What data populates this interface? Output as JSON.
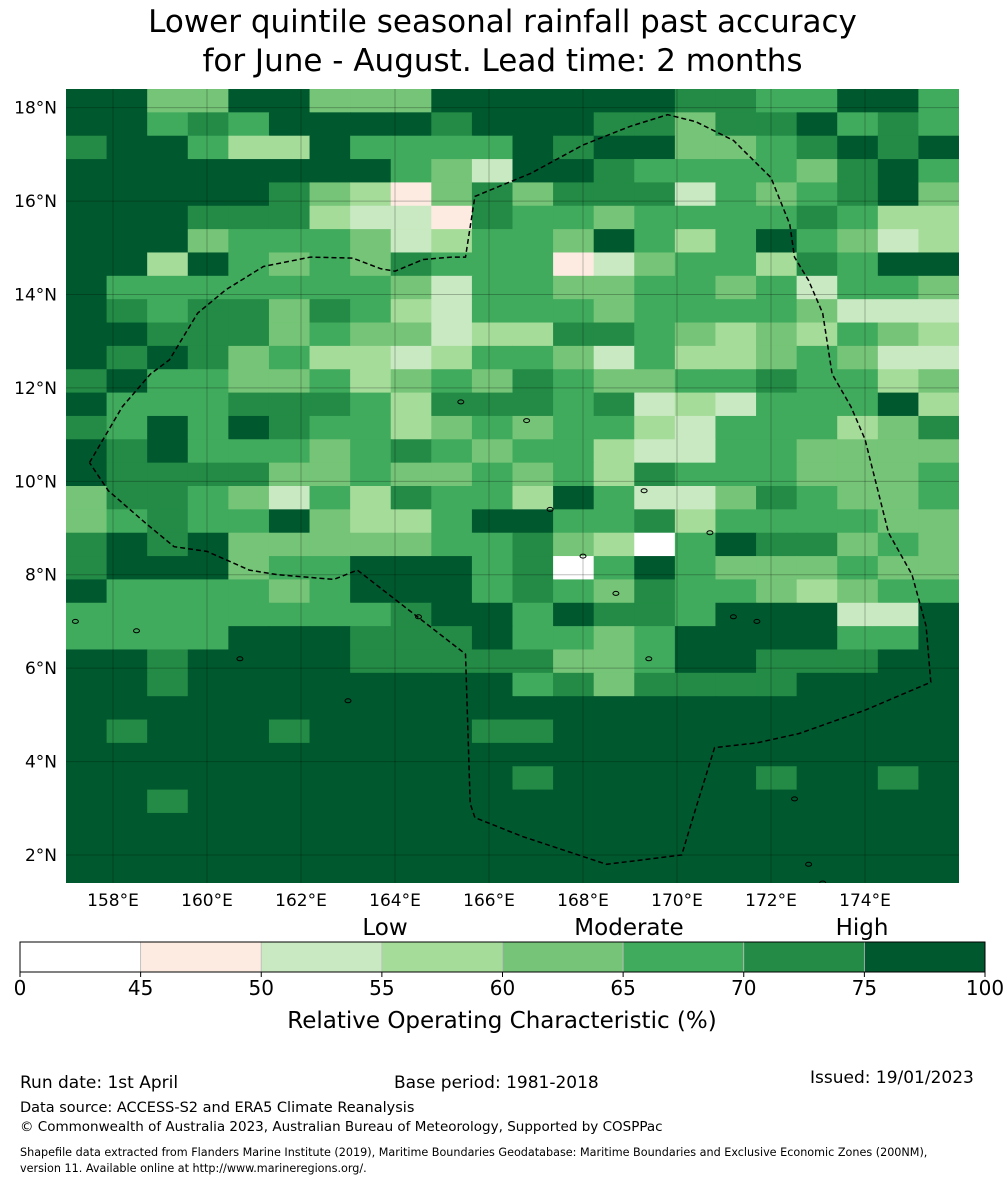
{
  "title": {
    "line1": "Lower quintile seasonal rainfall past accuracy",
    "line2": "for June - August. Lead time: 2 months"
  },
  "map": {
    "lat_ticks": [
      "18°N",
      "16°N",
      "14°N",
      "12°N",
      "10°N",
      "8°N",
      "6°N",
      "4°N",
      "2°N"
    ],
    "lon_ticks": [
      "158°E",
      "160°E",
      "162°E",
      "164°E",
      "166°E",
      "168°E",
      "170°E",
      "172°E",
      "174°E"
    ],
    "lon_range": [
      157,
      176
    ],
    "lat_range": [
      1.4,
      18.4
    ],
    "grid": true,
    "cell_size_deg": 0.833,
    "grid_rows_north_to_south": [
      "7744774447777776655775",
      "7756577776777664667565",
      "6775337555576774456767",
      "7777777754277655554675",
      "7777764314646662545674",
      "7776663221655455556533",
      "7774555423554753575423",
      "7737545465551245536577",
      "7555555542554455452554",
      "7656646532555455554222",
      "7766645442336654343543",
      "7676453323554253345422",
      "6755445345465445565534",
      "7555666536665623255573",
      "6575765534545532555346",
      "7675554565455322554444",
      "7666644544545365554445",
      "4665425365537522465445",
      "4565574335775563555544",
      "6767444445564305766454",
      "6777455777560575444544",
      "7555545777565465543455",
      "5555555567757665777227",
      "5555777666755457777557",
      "7767777666664457766677",
      "7767777777756466667777",
      "7777777777777777777777",
      "7677767777667777777777",
      "7777777777777777777777",
      "7777777777767777767767",
      "7767777777777777777777",
      "7777777777777777777777",
      "7777777777777777777777",
      "7777777777777777777777"
    ],
    "zone_outline": [
      [
        157.5,
        10.4
      ],
      [
        158.2,
        11.6
      ],
      [
        158.8,
        12.3
      ],
      [
        159.2,
        12.6
      ],
      [
        159.8,
        13.6
      ],
      [
        160.4,
        14.1
      ],
      [
        161.2,
        14.6
      ],
      [
        162.2,
        14.8
      ],
      [
        163.1,
        14.78
      ],
      [
        163.7,
        14.55
      ],
      [
        164.0,
        14.5
      ],
      [
        164.6,
        14.75
      ],
      [
        165.2,
        14.8
      ],
      [
        165.5,
        14.8
      ],
      [
        165.7,
        16.1
      ],
      [
        166.9,
        16.6
      ],
      [
        168.0,
        17.2
      ],
      [
        169.0,
        17.6
      ],
      [
        169.8,
        17.85
      ],
      [
        170.4,
        17.7
      ],
      [
        171.2,
        17.3
      ],
      [
        172.0,
        16.5
      ],
      [
        172.4,
        15.5
      ],
      [
        172.5,
        14.8
      ],
      [
        172.8,
        14.3
      ],
      [
        173.1,
        13.6
      ],
      [
        173.3,
        12.3
      ],
      [
        173.7,
        11.6
      ],
      [
        174.0,
        10.9
      ],
      [
        174.2,
        10.1
      ],
      [
        174.5,
        8.9
      ],
      [
        175.0,
        8.0
      ],
      [
        175.3,
        6.9
      ],
      [
        175.4,
        5.7
      ],
      [
        174.0,
        5.1
      ],
      [
        172.6,
        4.6
      ],
      [
        171.7,
        4.4
      ],
      [
        170.8,
        4.3
      ],
      [
        170.4,
        3.0
      ],
      [
        170.1,
        2.0
      ],
      [
        168.5,
        1.8
      ],
      [
        167.6,
        2.1
      ],
      [
        166.7,
        2.4
      ],
      [
        165.7,
        2.8
      ],
      [
        165.6,
        3.1
      ],
      [
        165.5,
        6.3
      ],
      [
        163.2,
        8.1
      ],
      [
        162.7,
        7.9
      ],
      [
        161.5,
        8.0
      ],
      [
        160.9,
        8.1
      ],
      [
        160.0,
        8.5
      ],
      [
        159.3,
        8.6
      ],
      [
        158.7,
        9.1
      ],
      [
        157.9,
        9.8
      ],
      [
        157.5,
        10.4
      ]
    ],
    "islands": [
      [
        157.2,
        7.0
      ],
      [
        158.5,
        6.8
      ],
      [
        160.7,
        6.2
      ],
      [
        163.0,
        5.3
      ],
      [
        164.5,
        7.1
      ],
      [
        165.4,
        11.7
      ],
      [
        166.8,
        11.3
      ],
      [
        167.3,
        9.4
      ],
      [
        168.0,
        8.4
      ],
      [
        168.7,
        7.6
      ],
      [
        169.3,
        9.8
      ],
      [
        169.4,
        6.2
      ],
      [
        170.7,
        8.9
      ],
      [
        171.2,
        7.1
      ],
      [
        171.7,
        7.0
      ],
      [
        172.5,
        3.2
      ],
      [
        172.8,
        1.8
      ],
      [
        173.1,
        1.4
      ]
    ]
  },
  "colorbar": {
    "category_labels": {
      "low": "Low",
      "moderate": "Moderate",
      "high": "High"
    },
    "ticks": [
      "0",
      "45",
      "50",
      "55",
      "60",
      "65",
      "70",
      "75",
      "100"
    ],
    "colors": [
      "#ffffff",
      "#fdebe2",
      "#c8e9c1",
      "#a6dc9a",
      "#75c477",
      "#41ab5d",
      "#238b45",
      "#00592e"
    ],
    "label": "Relative Operating Characteristic (%)"
  },
  "footer": {
    "run_date": "Run date: 1st April",
    "base_period": "Base period: 1981-2018",
    "issued": "Issued: 19/01/2023",
    "data_source": "Data source: ACCESS-S2 and ERA5 Climate Reanalysis",
    "copyright": "© Commonwealth of Australia 2023, Australian Bureau of Meteorology, Supported by COSPPac",
    "shapefile_line1": "Shapefile data extracted from Flanders Marine Institute (2019), Maritime Boundaries Geodatabase: Maritime Boundaries and Exclusive Economic Zones (200NM),",
    "shapefile_line2": "version 11. Available online at http://www.marineregions.org/."
  }
}
